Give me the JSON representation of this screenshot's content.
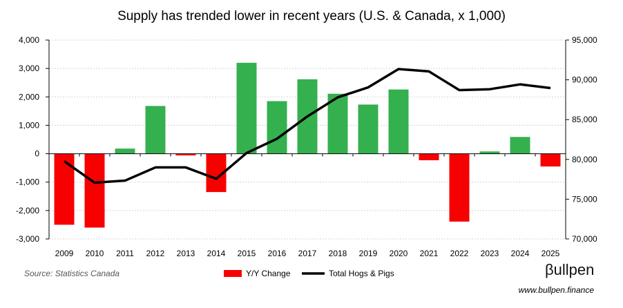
{
  "chart_data": {
    "type": "bar",
    "title": "Supply has trended lower in recent years (U.S. & Canada, x 1,000)",
    "categories": [
      "2009",
      "2010",
      "2011",
      "2012",
      "2013",
      "2014",
      "2015",
      "2016",
      "2017",
      "2018",
      "2019",
      "2020",
      "2021",
      "2022",
      "2023",
      "2024",
      "2025"
    ],
    "series": [
      {
        "name": "Y/Y Change",
        "type": "bar",
        "axis": "left",
        "values": [
          -2500,
          -2600,
          180,
          1680,
          -60,
          -1350,
          3200,
          1850,
          2620,
          2110,
          1730,
          2260,
          -230,
          -2390,
          80,
          590,
          -450
        ]
      },
      {
        "name": "Total Hogs & Pigs",
        "type": "line",
        "axis": "right",
        "values": [
          79770,
          77070,
          77330,
          78990,
          78990,
          77560,
          80800,
          82590,
          85400,
          87800,
          89050,
          91350,
          91060,
          88710,
          88820,
          89430,
          88970
        ]
      }
    ],
    "left_axis": {
      "ylim": [
        -3000,
        4000
      ],
      "ticks": [
        4000,
        3000,
        2000,
        1000,
        0,
        -1000,
        -2000,
        -3000
      ],
      "tick_labels": [
        "4,000",
        "3,000",
        "2,000",
        "1,000",
        "0",
        "-1,000",
        "-2,000",
        "-3,000"
      ]
    },
    "right_axis": {
      "ylim": [
        70000,
        95000
      ],
      "ticks": [
        95000,
        90000,
        85000,
        80000,
        75000,
        70000
      ],
      "tick_labels": [
        "95,000",
        "90,000",
        "85,000",
        "80,000",
        "75,000",
        "70,000"
      ]
    },
    "grid": true,
    "legend_position": "bottom",
    "colors": {
      "positive": "#35B04F",
      "negative": "#F70000",
      "line": "#000000"
    }
  },
  "footer": {
    "source": "Source: Statistics Canada",
    "logo": "βullpen",
    "url": "www.bullpen.finance"
  }
}
